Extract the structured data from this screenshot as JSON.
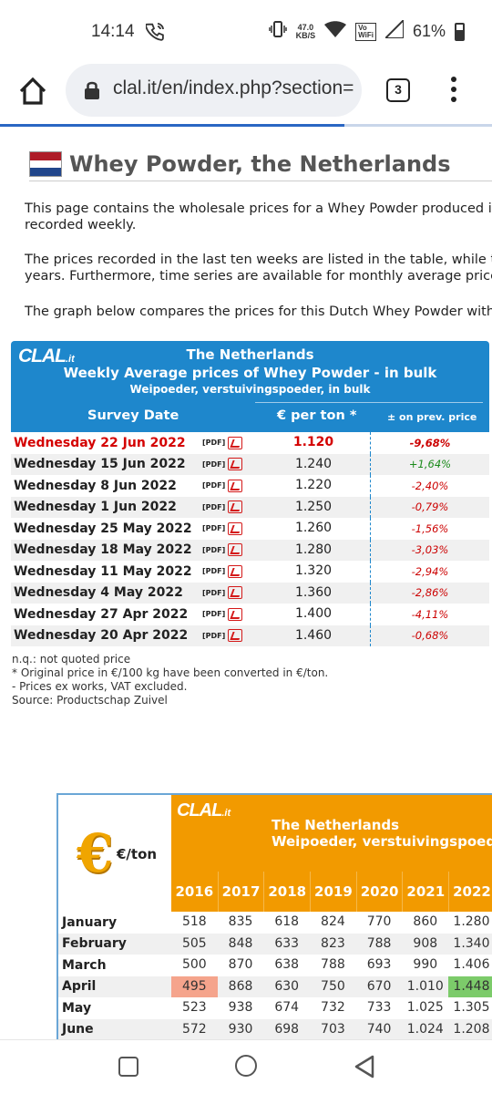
{
  "status_bar": {
    "time": "14:14",
    "speed_value": "47.0",
    "speed_unit": "KB/S",
    "volte_top": "Vo",
    "volte_bottom": "WiFi",
    "battery": "61%"
  },
  "browser": {
    "url": "clal.it/en/index.php?section=",
    "tab_count": "3",
    "progress_fraction": 0.7
  },
  "page": {
    "title": "Whey Powder, the Netherlands",
    "paragraphs": [
      [
        "This page contains the wholesale prices for a Whey Powder produced in the Netherlands,",
        "recorded weekly."
      ],
      [
        "The prices recorded in the last ten weeks are listed in the table, while the monthly prices",
        "years. Furthermore, time series are available for monthly average prices."
      ],
      [
        "The graph below compares the prices for this Dutch Whey Powder with the"
      ]
    ],
    "flag_colors": [
      "#ae1c28",
      "#ffffff",
      "#21468b"
    ]
  },
  "weekly_table": {
    "logo": "CLAL",
    "logo_suffix": ".it",
    "title1": "The Netherlands",
    "title2": "Weekly Average prices of Whey Powder - in bulk",
    "title3": "Weipoeder, verstuivingspoeder, in bulk",
    "col_date": "Survey Date",
    "col_price": "€ per ton *",
    "col_change": "± on prev. price",
    "pdf_label": "[PDF]",
    "rows": [
      {
        "date": "Wednesday 22 Jun 2022",
        "price": "1.120",
        "change": "-9,68%",
        "dir": "neg"
      },
      {
        "date": "Wednesday 15 Jun 2022",
        "price": "1.240",
        "change": "+1,64%",
        "dir": "pos"
      },
      {
        "date": "Wednesday 8 Jun 2022",
        "price": "1.220",
        "change": "-2,40%",
        "dir": "neg"
      },
      {
        "date": "Wednesday 1 Jun 2022",
        "price": "1.250",
        "change": "-0,79%",
        "dir": "neg"
      },
      {
        "date": "Wednesday 25 May 2022",
        "price": "1.260",
        "change": "-1,56%",
        "dir": "neg"
      },
      {
        "date": "Wednesday 18 May 2022",
        "price": "1.280",
        "change": "-3,03%",
        "dir": "neg"
      },
      {
        "date": "Wednesday 11 May 2022",
        "price": "1.320",
        "change": "-2,94%",
        "dir": "neg"
      },
      {
        "date": "Wednesday 4 May 2022",
        "price": "1.360",
        "change": "-2,86%",
        "dir": "neg"
      },
      {
        "date": "Wednesday 27 Apr 2022",
        "price": "1.400",
        "change": "-4,11%",
        "dir": "neg"
      },
      {
        "date": "Wednesday 20 Apr 2022",
        "price": "1.460",
        "change": "-0,68%",
        "dir": "neg"
      }
    ],
    "notes": [
      "n.q.: not quoted price",
      "* Original price in €/100 kg have been converted in €/ton.",
      "- Prices ex works, VAT excluded.",
      "Source: Productschap Zuivel"
    ]
  },
  "monthly_table": {
    "unit": "€/ton",
    "logo": "CLAL",
    "logo_suffix": ".it",
    "title1": "The Netherlands",
    "title2": "Weipoeder, verstuivingspoeder",
    "years": [
      "2016",
      "2017",
      "2018",
      "2019",
      "2020",
      "2021",
      "2022"
    ],
    "rows": [
      {
        "month": "January",
        "values": [
          "518",
          "835",
          "618",
          "824",
          "770",
          "860",
          "1.280"
        ]
      },
      {
        "month": "February",
        "values": [
          "505",
          "848",
          "633",
          "823",
          "788",
          "908",
          "1.340"
        ]
      },
      {
        "month": "March",
        "values": [
          "500",
          "870",
          "638",
          "788",
          "693",
          "990",
          "1.406"
        ]
      },
      {
        "month": "April",
        "values": [
          "495",
          "868",
          "630",
          "750",
          "670",
          "1.010",
          "1.448"
        ],
        "low": 0,
        "high": 6
      },
      {
        "month": "May",
        "values": [
          "523",
          "938",
          "674",
          "732",
          "733",
          "1.025",
          "1.305"
        ]
      },
      {
        "month": "June",
        "values": [
          "572",
          "930",
          "698",
          "703",
          "740",
          "1.024",
          "1.208"
        ]
      }
    ],
    "low_color": "#f5a48c",
    "high_color": "#7ccb6a"
  }
}
